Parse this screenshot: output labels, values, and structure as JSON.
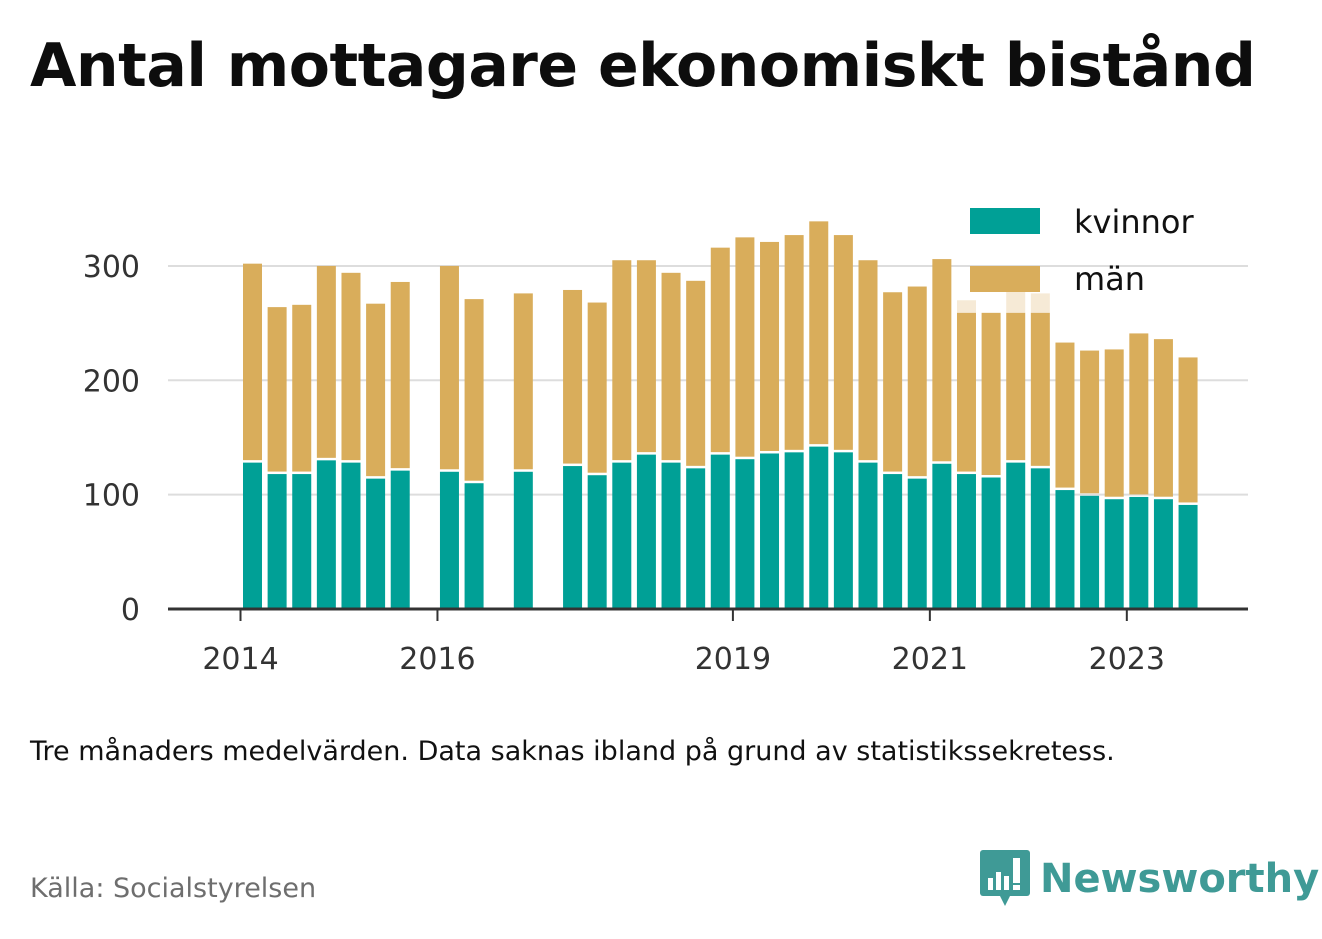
{
  "title": "Antal mottagare ekonomiskt bistånd",
  "note": "Tre månaders medelvärden. Data saknas ibland på grund av statistikssekretess.",
  "source": "Källa: Socialstyrelsen",
  "brand": {
    "name": "Newsworthy",
    "icon": "bar-chart-speech-bubble-icon",
    "color": "#3f9a96"
  },
  "colors": {
    "kvinnor": "#00a096",
    "man": "#d9ad5b",
    "man_faint": "#f6ead6",
    "grid": "#dddddd",
    "axis": "#333333"
  },
  "chart_data": {
    "type": "bar",
    "stacked": true,
    "title": "Antal mottagare ekonomiskt bistånd",
    "ylim": [
      0,
      340
    ],
    "yticks": [
      0,
      100,
      200,
      300
    ],
    "xtick_labels": [
      "2014",
      "2016",
      "2019",
      "2021",
      "2023"
    ],
    "grid": true,
    "legend_position": "top-right",
    "series": [
      {
        "name": "kvinnor",
        "color": "#00a096",
        "values": [
          128,
          118,
          118,
          130,
          128,
          114,
          121,
          null,
          120,
          110,
          null,
          120,
          null,
          125,
          117,
          128,
          135,
          128,
          123,
          135,
          131,
          136,
          137,
          142,
          137,
          128,
          118,
          114,
          127,
          118,
          115,
          128,
          123,
          104,
          99,
          96,
          98,
          96,
          91
        ]
      },
      {
        "name": "män",
        "color": "#d9ad5b",
        "values": [
          174,
          146,
          148,
          170,
          166,
          153,
          165,
          null,
          180,
          161,
          null,
          156,
          null,
          154,
          151,
          177,
          170,
          166,
          164,
          181,
          194,
          185,
          190,
          197,
          190,
          177,
          159,
          168,
          179,
          141,
          144,
          131,
          136,
          129,
          127,
          131,
          143,
          140,
          129
        ]
      }
    ],
    "faint_totals": [
      null,
      null,
      null,
      null,
      null,
      null,
      null,
      null,
      null,
      null,
      null,
      null,
      null,
      null,
      null,
      null,
      null,
      null,
      null,
      null,
      null,
      null,
      null,
      null,
      null,
      null,
      null,
      null,
      null,
      270,
      null,
      281,
      276,
      null,
      null,
      null,
      null,
      null,
      null
    ]
  }
}
